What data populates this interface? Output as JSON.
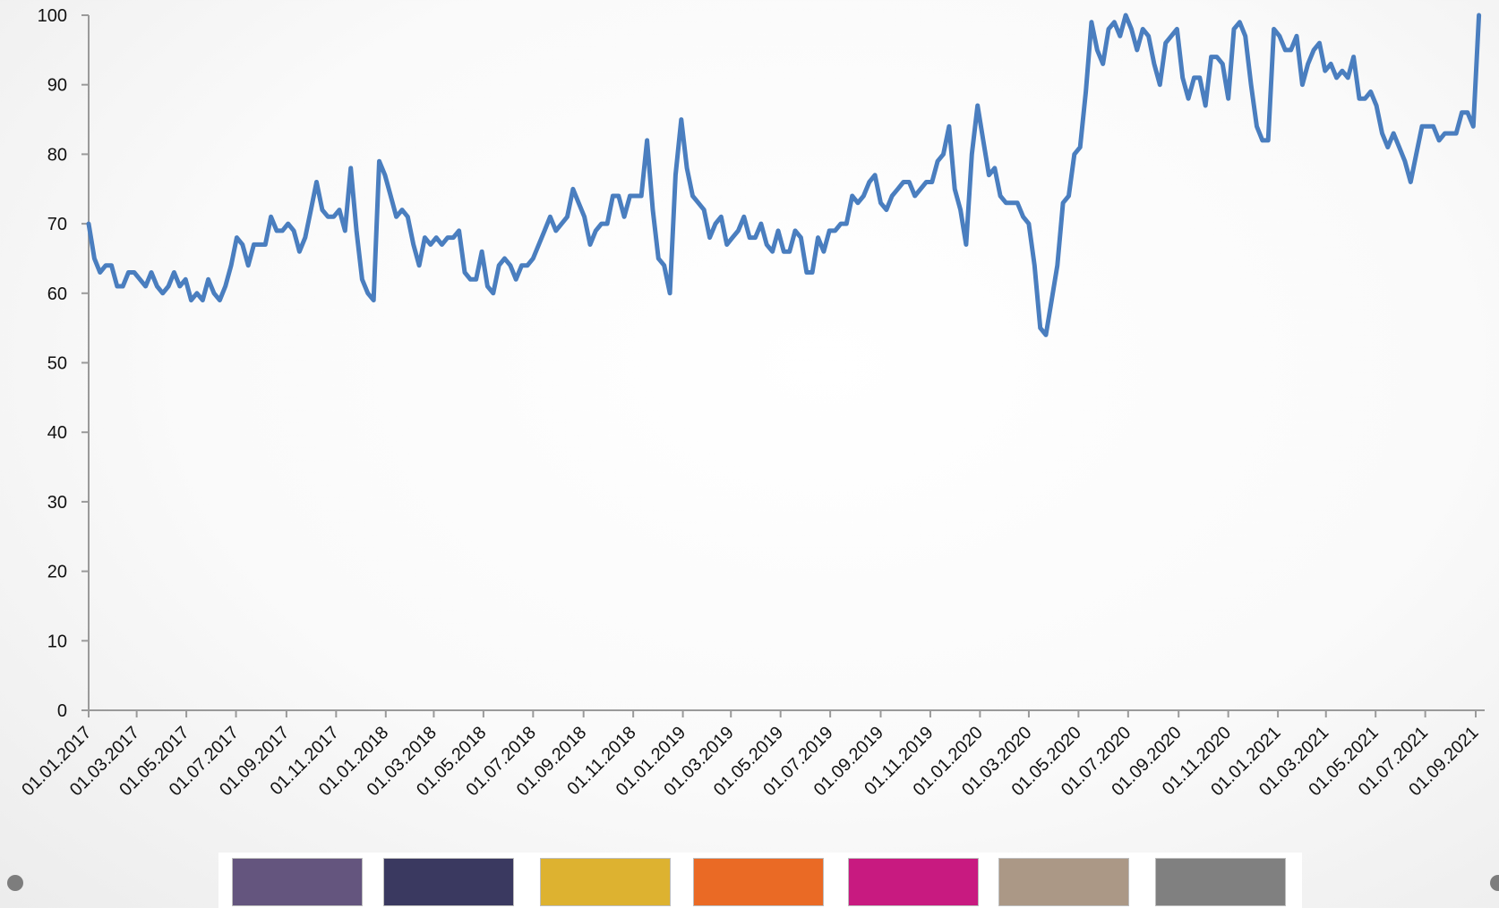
{
  "chart_data": {
    "type": "line",
    "title": "",
    "xlabel": "",
    "ylabel": "",
    "ylim": [
      0,
      100
    ],
    "yticks": [
      0,
      10,
      20,
      30,
      40,
      50,
      60,
      70,
      80,
      90,
      100
    ],
    "grid": false,
    "line_color": "#4a7ebf",
    "x_tick_labels": [
      "01.01.2017",
      "01.03.2017",
      "01.05.2017",
      "01.07.2017",
      "01.09.2017",
      "01.11.2017",
      "01.01.2018",
      "01.03.2018",
      "01.05.2018",
      "01.07.2018",
      "01.09.2018",
      "01.11.2018",
      "01.01.2019",
      "01.03.2019",
      "01.05.2019",
      "01.07.2019",
      "01.09.2019",
      "01.11.2019",
      "01.01.2020",
      "01.03.2020",
      "01.05.2020",
      "01.07.2020",
      "01.09.2020",
      "01.11.2020",
      "01.01.2021",
      "01.03.2021",
      "01.05.2021",
      "01.07.2021",
      "01.09.2021"
    ],
    "x_start": "01.01.2017",
    "x_end": "12.09.2021",
    "points": [
      [
        "01.01.2017",
        70
      ],
      [
        "08.01.2017",
        65
      ],
      [
        "15.01.2017",
        63
      ],
      [
        "22.01.2017",
        64
      ],
      [
        "29.01.2017",
        64
      ],
      [
        "05.02.2017",
        61
      ],
      [
        "12.02.2017",
        61
      ],
      [
        "19.02.2017",
        63
      ],
      [
        "26.02.2017",
        63
      ],
      [
        "05.03.2017",
        62
      ],
      [
        "12.03.2017",
        61
      ],
      [
        "19.03.2017",
        63
      ],
      [
        "26.03.2017",
        61
      ],
      [
        "02.04.2017",
        60
      ],
      [
        "09.04.2017",
        61
      ],
      [
        "16.04.2017",
        63
      ],
      [
        "23.04.2017",
        61
      ],
      [
        "30.04.2017",
        62
      ],
      [
        "07.05.2017",
        59
      ],
      [
        "14.05.2017",
        60
      ],
      [
        "21.05.2017",
        59
      ],
      [
        "28.05.2017",
        62
      ],
      [
        "04.06.2017",
        60
      ],
      [
        "11.06.2017",
        59
      ],
      [
        "18.06.2017",
        61
      ],
      [
        "25.06.2017",
        64
      ],
      [
        "02.07.2017",
        68
      ],
      [
        "09.07.2017",
        67
      ],
      [
        "16.07.2017",
        64
      ],
      [
        "23.07.2017",
        67
      ],
      [
        "30.07.2017",
        67
      ],
      [
        "06.08.2017",
        67
      ],
      [
        "13.08.2017",
        71
      ],
      [
        "20.08.2017",
        69
      ],
      [
        "27.08.2017",
        69
      ],
      [
        "03.09.2017",
        70
      ],
      [
        "10.09.2017",
        69
      ],
      [
        "17.09.2017",
        66
      ],
      [
        "24.09.2017",
        68
      ],
      [
        "01.10.2017",
        72
      ],
      [
        "08.10.2017",
        76
      ],
      [
        "15.10.2017",
        72
      ],
      [
        "22.10.2017",
        71
      ],
      [
        "29.10.2017",
        71
      ],
      [
        "05.11.2017",
        72
      ],
      [
        "12.11.2017",
        69
      ],
      [
        "19.11.2017",
        78
      ],
      [
        "26.11.2017",
        69
      ],
      [
        "03.12.2017",
        62
      ],
      [
        "10.12.2017",
        60
      ],
      [
        "17.12.2017",
        59
      ],
      [
        "24.12.2017",
        79
      ],
      [
        "31.12.2017",
        77
      ],
      [
        "07.01.2018",
        74
      ],
      [
        "14.01.2018",
        71
      ],
      [
        "21.01.2018",
        72
      ],
      [
        "28.01.2018",
        71
      ],
      [
        "04.02.2018",
        67
      ],
      [
        "11.02.2018",
        64
      ],
      [
        "18.02.2018",
        68
      ],
      [
        "25.02.2018",
        67
      ],
      [
        "04.03.2018",
        68
      ],
      [
        "11.03.2018",
        67
      ],
      [
        "18.03.2018",
        68
      ],
      [
        "25.03.2018",
        68
      ],
      [
        "01.04.2018",
        69
      ],
      [
        "08.04.2018",
        63
      ],
      [
        "15.04.2018",
        62
      ],
      [
        "22.04.2018",
        62
      ],
      [
        "29.04.2018",
        66
      ],
      [
        "06.05.2018",
        61
      ],
      [
        "13.05.2018",
        60
      ],
      [
        "20.05.2018",
        64
      ],
      [
        "27.05.2018",
        65
      ],
      [
        "03.06.2018",
        64
      ],
      [
        "10.06.2018",
        62
      ],
      [
        "17.06.2018",
        64
      ],
      [
        "24.06.2018",
        64
      ],
      [
        "01.07.2018",
        65
      ],
      [
        "08.07.2018",
        67
      ],
      [
        "15.07.2018",
        69
      ],
      [
        "22.07.2018",
        71
      ],
      [
        "29.07.2018",
        69
      ],
      [
        "05.08.2018",
        70
      ],
      [
        "12.08.2018",
        71
      ],
      [
        "19.08.2018",
        75
      ],
      [
        "26.08.2018",
        73
      ],
      [
        "02.09.2018",
        71
      ],
      [
        "09.09.2018",
        67
      ],
      [
        "16.09.2018",
        69
      ],
      [
        "23.09.2018",
        70
      ],
      [
        "30.09.2018",
        70
      ],
      [
        "07.10.2018",
        74
      ],
      [
        "14.10.2018",
        74
      ],
      [
        "21.10.2018",
        71
      ],
      [
        "28.10.2018",
        74
      ],
      [
        "04.11.2018",
        74
      ],
      [
        "11.11.2018",
        74
      ],
      [
        "18.11.2018",
        82
      ],
      [
        "25.11.2018",
        72
      ],
      [
        "02.12.2018",
        65
      ],
      [
        "09.12.2018",
        64
      ],
      [
        "16.12.2018",
        60
      ],
      [
        "23.12.2018",
        77
      ],
      [
        "30.12.2018",
        85
      ],
      [
        "06.01.2019",
        78
      ],
      [
        "13.01.2019",
        74
      ],
      [
        "20.01.2019",
        73
      ],
      [
        "27.01.2019",
        72
      ],
      [
        "03.02.2019",
        68
      ],
      [
        "10.02.2019",
        70
      ],
      [
        "17.02.2019",
        71
      ],
      [
        "24.02.2019",
        67
      ],
      [
        "03.03.2019",
        68
      ],
      [
        "10.03.2019",
        69
      ],
      [
        "17.03.2019",
        71
      ],
      [
        "24.03.2019",
        68
      ],
      [
        "31.03.2019",
        68
      ],
      [
        "07.04.2019",
        70
      ],
      [
        "14.04.2019",
        67
      ],
      [
        "21.04.2019",
        66
      ],
      [
        "28.04.2019",
        69
      ],
      [
        "05.05.2019",
        66
      ],
      [
        "12.05.2019",
        66
      ],
      [
        "19.05.2019",
        69
      ],
      [
        "26.05.2019",
        68
      ],
      [
        "02.06.2019",
        63
      ],
      [
        "09.06.2019",
        63
      ],
      [
        "16.06.2019",
        68
      ],
      [
        "23.06.2019",
        66
      ],
      [
        "30.06.2019",
        69
      ],
      [
        "07.07.2019",
        69
      ],
      [
        "14.07.2019",
        70
      ],
      [
        "21.07.2019",
        70
      ],
      [
        "28.07.2019",
        74
      ],
      [
        "04.08.2019",
        73
      ],
      [
        "11.08.2019",
        74
      ],
      [
        "18.08.2019",
        76
      ],
      [
        "25.08.2019",
        77
      ],
      [
        "01.09.2019",
        73
      ],
      [
        "08.09.2019",
        72
      ],
      [
        "15.09.2019",
        74
      ],
      [
        "22.09.2019",
        75
      ],
      [
        "29.09.2019",
        76
      ],
      [
        "06.10.2019",
        76
      ],
      [
        "13.10.2019",
        74
      ],
      [
        "20.10.2019",
        75
      ],
      [
        "27.10.2019",
        76
      ],
      [
        "03.11.2019",
        76
      ],
      [
        "10.11.2019",
        79
      ],
      [
        "17.11.2019",
        80
      ],
      [
        "24.11.2019",
        84
      ],
      [
        "01.12.2019",
        75
      ],
      [
        "08.12.2019",
        72
      ],
      [
        "15.12.2019",
        67
      ],
      [
        "22.12.2019",
        80
      ],
      [
        "29.12.2019",
        87
      ],
      [
        "05.01.2020",
        82
      ],
      [
        "12.01.2020",
        77
      ],
      [
        "19.01.2020",
        78
      ],
      [
        "26.01.2020",
        74
      ],
      [
        "02.02.2020",
        73
      ],
      [
        "09.02.2020",
        73
      ],
      [
        "16.02.2020",
        73
      ],
      [
        "23.02.2020",
        71
      ],
      [
        "01.03.2020",
        70
      ],
      [
        "08.03.2020",
        64
      ],
      [
        "15.03.2020",
        55
      ],
      [
        "22.03.2020",
        54
      ],
      [
        "29.03.2020",
        59
      ],
      [
        "05.04.2020",
        64
      ],
      [
        "12.04.2020",
        73
      ],
      [
        "19.04.2020",
        74
      ],
      [
        "26.04.2020",
        80
      ],
      [
        "03.05.2020",
        81
      ],
      [
        "10.05.2020",
        89
      ],
      [
        "17.05.2020",
        99
      ],
      [
        "24.05.2020",
        95
      ],
      [
        "31.05.2020",
        93
      ],
      [
        "07.06.2020",
        98
      ],
      [
        "14.06.2020",
        99
      ],
      [
        "21.06.2020",
        97
      ],
      [
        "28.06.2020",
        100
      ],
      [
        "05.07.2020",
        98
      ],
      [
        "12.07.2020",
        95
      ],
      [
        "19.07.2020",
        98
      ],
      [
        "26.07.2020",
        97
      ],
      [
        "02.08.2020",
        93
      ],
      [
        "09.08.2020",
        90
      ],
      [
        "16.08.2020",
        96
      ],
      [
        "23.08.2020",
        97
      ],
      [
        "30.08.2020",
        98
      ],
      [
        "06.09.2020",
        91
      ],
      [
        "13.09.2020",
        88
      ],
      [
        "20.09.2020",
        91
      ],
      [
        "27.09.2020",
        91
      ],
      [
        "04.10.2020",
        87
      ],
      [
        "11.10.2020",
        94
      ],
      [
        "18.10.2020",
        94
      ],
      [
        "25.10.2020",
        93
      ],
      [
        "01.11.2020",
        88
      ],
      [
        "08.11.2020",
        98
      ],
      [
        "15.11.2020",
        99
      ],
      [
        "22.11.2020",
        97
      ],
      [
        "29.11.2020",
        90
      ],
      [
        "06.12.2020",
        84
      ],
      [
        "13.12.2020",
        82
      ],
      [
        "20.12.2020",
        82
      ],
      [
        "27.12.2020",
        98
      ],
      [
        "03.01.2021",
        97
      ],
      [
        "10.01.2021",
        95
      ],
      [
        "17.01.2021",
        95
      ],
      [
        "24.01.2021",
        97
      ],
      [
        "31.01.2021",
        90
      ],
      [
        "07.02.2021",
        93
      ],
      [
        "14.02.2021",
        95
      ],
      [
        "21.02.2021",
        96
      ],
      [
        "28.02.2021",
        92
      ],
      [
        "07.03.2021",
        93
      ],
      [
        "14.03.2021",
        91
      ],
      [
        "21.03.2021",
        92
      ],
      [
        "28.03.2021",
        91
      ],
      [
        "04.04.2021",
        94
      ],
      [
        "11.04.2021",
        88
      ],
      [
        "18.04.2021",
        88
      ],
      [
        "25.04.2021",
        89
      ],
      [
        "02.05.2021",
        87
      ],
      [
        "09.05.2021",
        83
      ],
      [
        "16.05.2021",
        81
      ],
      [
        "23.05.2021",
        83
      ],
      [
        "30.05.2021",
        81
      ],
      [
        "06.06.2021",
        79
      ],
      [
        "13.06.2021",
        76
      ],
      [
        "20.06.2021",
        80
      ],
      [
        "27.06.2021",
        84
      ],
      [
        "04.07.2021",
        84
      ],
      [
        "11.07.2021",
        84
      ],
      [
        "18.07.2021",
        82
      ],
      [
        "25.07.2021",
        83
      ],
      [
        "01.08.2021",
        83
      ],
      [
        "08.08.2021",
        83
      ],
      [
        "15.08.2021",
        86
      ],
      [
        "22.08.2021",
        86
      ],
      [
        "29.08.2021",
        84
      ],
      [
        "05.09.2021",
        100
      ]
    ]
  },
  "legend_swatches": [
    "#64557e",
    "#3a3960",
    "#ddb230",
    "#ea6a25",
    "#c81a80",
    "#ab9886",
    "#808080"
  ]
}
